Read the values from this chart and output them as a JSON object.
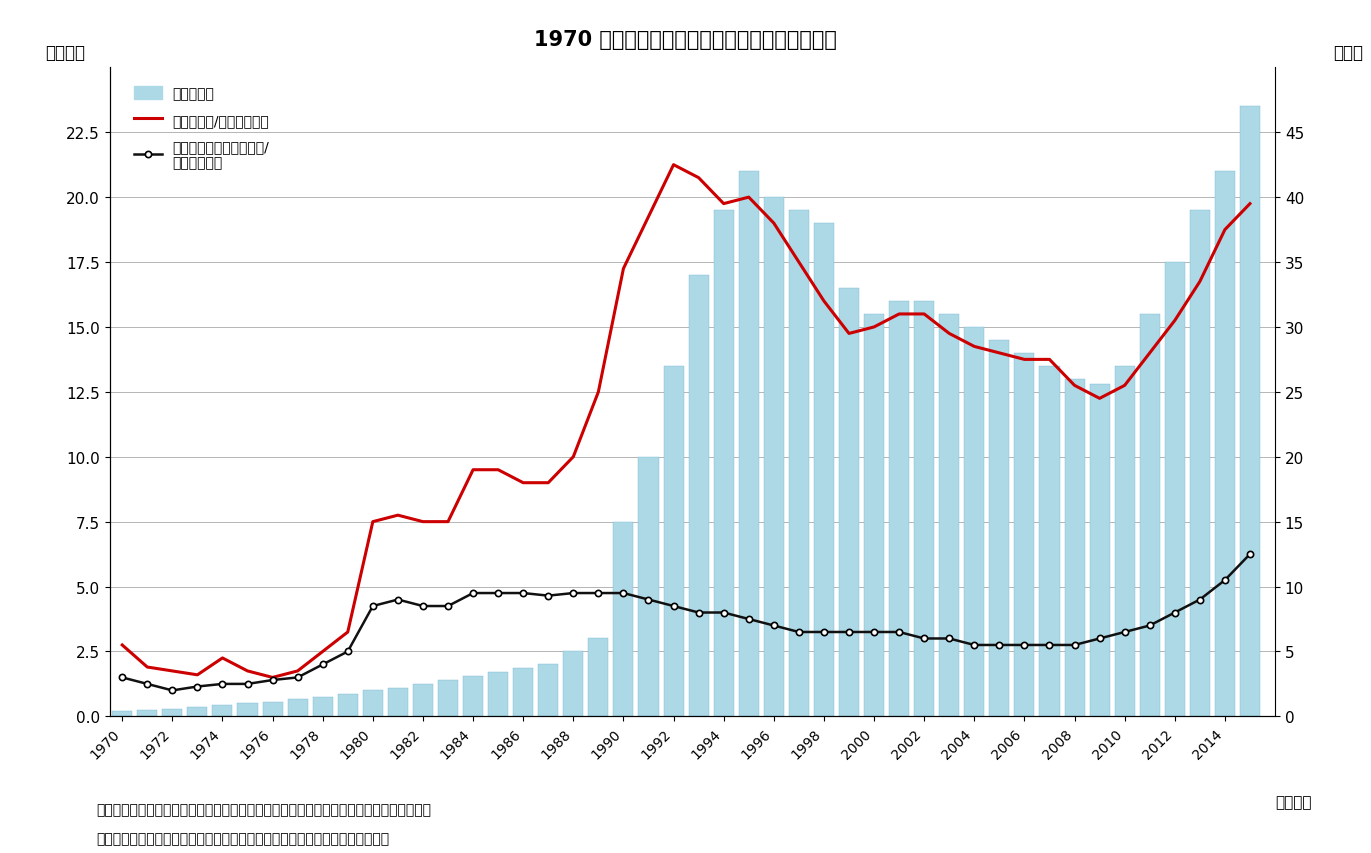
{
  "title": "1970 年度以降の地方公共団体の基金残高の推移",
  "ylabel_left": "（兆円）",
  "ylabel_right": "（％）",
  "xlabel": "（年度）",
  "note1": "（注）総基金残高は、財政調整基金、減債基金、その他特定目的基金の積立金残高の合計",
  "note2": "（資料）総務省「都道府県決算状況調」「市町村決算状況調」に基づいて作成",
  "legend1": "総基金残高",
  "legend2": "総基金残高/標準財政規模",
  "legend3_line1": "財政調整基金積立金残高/",
  "legend3_line2": "標準財政規模",
  "bar_color": "#add8e6",
  "bar_edge_color": "#7ab8d4",
  "line1_color": "#cc0000",
  "line2_color": "#111111",
  "years": [
    1970,
    1971,
    1972,
    1973,
    1974,
    1975,
    1976,
    1977,
    1978,
    1979,
    1980,
    1981,
    1982,
    1983,
    1984,
    1985,
    1986,
    1987,
    1988,
    1989,
    1990,
    1991,
    1992,
    1993,
    1994,
    1995,
    1996,
    1997,
    1998,
    1999,
    2000,
    2001,
    2002,
    2003,
    2004,
    2005,
    2006,
    2007,
    2008,
    2009,
    2010,
    2011,
    2012,
    2013,
    2014,
    2015
  ],
  "bar_values": [
    0.2,
    0.25,
    0.3,
    0.35,
    0.45,
    0.5,
    0.55,
    0.65,
    0.75,
    0.85,
    1.0,
    1.1,
    1.25,
    1.4,
    1.55,
    1.7,
    1.85,
    2.0,
    2.5,
    3.0,
    7.5,
    10.0,
    13.5,
    17.0,
    19.5,
    21.0,
    20.0,
    19.5,
    19.0,
    16.5,
    15.5,
    16.0,
    16.0,
    15.5,
    15.0,
    14.5,
    14.0,
    13.5,
    13.0,
    12.8,
    13.5,
    15.5,
    17.5,
    19.5,
    21.0,
    23.5
  ],
  "line1_years": [
    1970,
    1971,
    1972,
    1973,
    1974,
    1975,
    1976,
    1977,
    1978,
    1979,
    1980,
    1981,
    1982,
    1983,
    1984,
    1985,
    1986,
    1987,
    1988,
    1989,
    1990,
    1991,
    1992,
    1993,
    1994,
    1995,
    1996,
    1997,
    1998,
    1999,
    2000,
    2001,
    2002,
    2003,
    2004,
    2005,
    2006,
    2007,
    2008,
    2009,
    2010,
    2011,
    2012,
    2013,
    2014,
    2015
  ],
  "line1_values": [
    5.5,
    3.8,
    3.5,
    3.2,
    4.5,
    3.5,
    3.0,
    3.5,
    5.0,
    6.5,
    15.0,
    15.5,
    15.0,
    15.0,
    19.0,
    19.0,
    18.0,
    18.0,
    20.0,
    25.0,
    34.5,
    38.5,
    42.5,
    41.5,
    39.5,
    40.0,
    38.0,
    35.0,
    32.0,
    29.5,
    30.0,
    31.0,
    31.0,
    29.5,
    28.5,
    28.0,
    27.5,
    27.5,
    25.5,
    24.5,
    25.5,
    28.0,
    30.5,
    33.5,
    37.5,
    39.5
  ],
  "line2_years": [
    1970,
    1971,
    1972,
    1973,
    1974,
    1975,
    1976,
    1977,
    1978,
    1979,
    1980,
    1981,
    1982,
    1983,
    1984,
    1985,
    1986,
    1987,
    1988,
    1989,
    1990,
    1991,
    1992,
    1993,
    1994,
    1995,
    1996,
    1997,
    1998,
    1999,
    2000,
    2001,
    2002,
    2003,
    2004,
    2005,
    2006,
    2007,
    2008,
    2009,
    2010,
    2011,
    2012,
    2013,
    2014,
    2015
  ],
  "line2_values": [
    3.0,
    2.5,
    2.0,
    2.3,
    2.5,
    2.5,
    2.8,
    3.0,
    4.0,
    5.0,
    8.5,
    9.0,
    8.5,
    8.5,
    9.5,
    9.5,
    9.5,
    9.3,
    9.5,
    9.5,
    9.5,
    9.0,
    8.5,
    8.0,
    8.0,
    7.5,
    7.0,
    6.5,
    6.5,
    6.5,
    6.5,
    6.5,
    6.0,
    6.0,
    5.5,
    5.5,
    5.5,
    5.5,
    5.5,
    6.0,
    6.5,
    7.0,
    8.0,
    9.0,
    10.5,
    12.5
  ],
  "ylim_left": [
    0,
    25
  ],
  "ylim_right": [
    0,
    50
  ],
  "yticks_left": [
    0.0,
    2.5,
    5.0,
    7.5,
    10.0,
    12.5,
    15.0,
    17.5,
    20.0,
    22.5
  ],
  "yticks_right": [
    0,
    5,
    10,
    15,
    20,
    25,
    30,
    35,
    40,
    45
  ],
  "background_color": "#ffffff"
}
